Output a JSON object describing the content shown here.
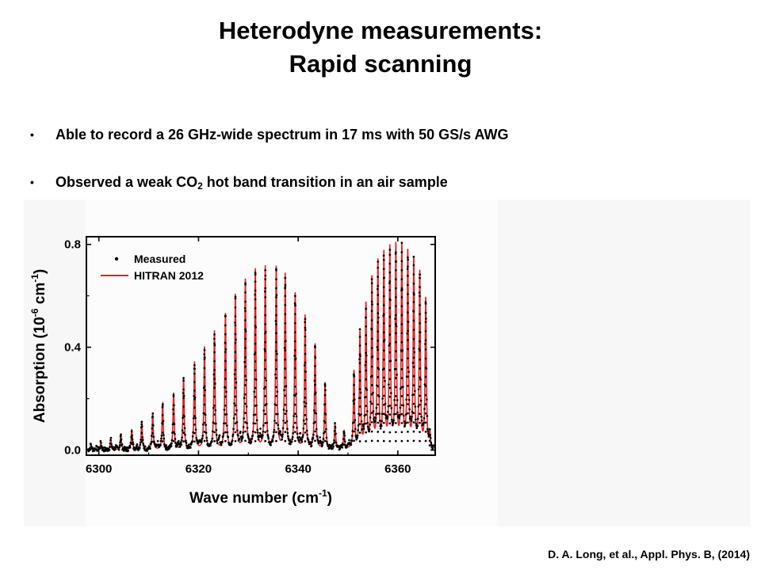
{
  "slide": {
    "title_line1": "Heterodyne measurements:",
    "title_line2": "Rapid scanning",
    "bullet_glyph": "•",
    "bullet1": "Able to record a 26 GHz-wide spectrum in 17 ms with 50 GS/s AWG",
    "bullet2_pre": "Observed a weak CO",
    "bullet2_sub": "2",
    "bullet2_post": " hot band transition in an air sample",
    "citation": "D. A. Long, et al., Appl. Phys. B, (2014)"
  },
  "chart_data": {
    "type": "line",
    "title": "",
    "xlabel_main": "Wave number (cm",
    "xlabel_sup": "-1",
    "xlabel_end": ")",
    "ylabel_main": "Absorption (10",
    "ylabel_sup1": "-6",
    "ylabel_mid": " cm",
    "ylabel_sup2": "-1",
    "ylabel_end": ")",
    "xlim": [
      6297.5,
      6367.5
    ],
    "ylim": [
      -0.02,
      0.83
    ],
    "xticks": [
      6300,
      6320,
      6340,
      6360
    ],
    "yticks": [
      0.0,
      0.4,
      0.8
    ],
    "xtick_labels": [
      "6300",
      "6320",
      "6340",
      "6360"
    ],
    "ytick_labels": [
      "0.0",
      "0.4",
      "0.8"
    ],
    "legend_position": "top-left",
    "colors": {
      "hitran": "#e02020",
      "measured": "#000000"
    },
    "series": [
      {
        "name": "Measured",
        "style": "points"
      },
      {
        "name": "HITRAN 2012",
        "style": "line"
      }
    ],
    "line_width_cm1": 0.14,
    "peaks": [
      {
        "x": 6298.4,
        "h": 0.02
      },
      {
        "x": 6300.4,
        "h": 0.03
      },
      {
        "x": 6302.4,
        "h": 0.04
      },
      {
        "x": 6304.4,
        "h": 0.06
      },
      {
        "x": 6306.6,
        "h": 0.08
      },
      {
        "x": 6308.6,
        "h": 0.11
      },
      {
        "x": 6310.8,
        "h": 0.14
      },
      {
        "x": 6312.8,
        "h": 0.18
      },
      {
        "x": 6315.0,
        "h": 0.22
      },
      {
        "x": 6317.0,
        "h": 0.28
      },
      {
        "x": 6319.2,
        "h": 0.34
      },
      {
        "x": 6321.2,
        "h": 0.4
      },
      {
        "x": 6323.2,
        "h": 0.46
      },
      {
        "x": 6325.4,
        "h": 0.53
      },
      {
        "x": 6327.4,
        "h": 0.6
      },
      {
        "x": 6329.4,
        "h": 0.66
      },
      {
        "x": 6331.4,
        "h": 0.7
      },
      {
        "x": 6333.4,
        "h": 0.71
      },
      {
        "x": 6335.6,
        "h": 0.71
      },
      {
        "x": 6337.4,
        "h": 0.68
      },
      {
        "x": 6339.4,
        "h": 0.61
      },
      {
        "x": 6341.4,
        "h": 0.52
      },
      {
        "x": 6343.4,
        "h": 0.41
      },
      {
        "x": 6345.4,
        "h": 0.26
      },
      {
        "x": 6347.4,
        "h": 0.1
      },
      {
        "x": 6349.2,
        "h": 0.07
      },
      {
        "x": 6351.2,
        "h": 0.3
      },
      {
        "x": 6352.4,
        "h": 0.45
      },
      {
        "x": 6353.6,
        "h": 0.56
      },
      {
        "x": 6354.8,
        "h": 0.66
      },
      {
        "x": 6356.0,
        "h": 0.72
      },
      {
        "x": 6357.2,
        "h": 0.75
      },
      {
        "x": 6358.4,
        "h": 0.77
      },
      {
        "x": 6359.6,
        "h": 0.78
      },
      {
        "x": 6360.8,
        "h": 0.78
      },
      {
        "x": 6362.0,
        "h": 0.76
      },
      {
        "x": 6363.2,
        "h": 0.73
      },
      {
        "x": 6364.4,
        "h": 0.68
      },
      {
        "x": 6365.6,
        "h": 0.58
      },
      {
        "x": 6366.4,
        "h": 0.06
      }
    ],
    "baseline_peaks": [
      {
        "x": 6299.4,
        "h": 0.01
      },
      {
        "x": 6303.4,
        "h": 0.012
      },
      {
        "x": 6307.6,
        "h": 0.015
      },
      {
        "x": 6311.8,
        "h": 0.02
      },
      {
        "x": 6316.0,
        "h": 0.025
      },
      {
        "x": 6320.2,
        "h": 0.03
      },
      {
        "x": 6324.2,
        "h": 0.035
      },
      {
        "x": 6328.4,
        "h": 0.04
      },
      {
        "x": 6332.4,
        "h": 0.045
      },
      {
        "x": 6336.4,
        "h": 0.04
      },
      {
        "x": 6340.4,
        "h": 0.035
      },
      {
        "x": 6344.4,
        "h": 0.03
      },
      {
        "x": 6350.2,
        "h": 0.02
      },
      {
        "x": 6353.0,
        "h": 0.03
      },
      {
        "x": 6355.4,
        "h": 0.035
      },
      {
        "x": 6357.8,
        "h": 0.04
      },
      {
        "x": 6360.2,
        "h": 0.04
      },
      {
        "x": 6362.6,
        "h": 0.04
      },
      {
        "x": 6365.0,
        "h": 0.035
      }
    ]
  }
}
